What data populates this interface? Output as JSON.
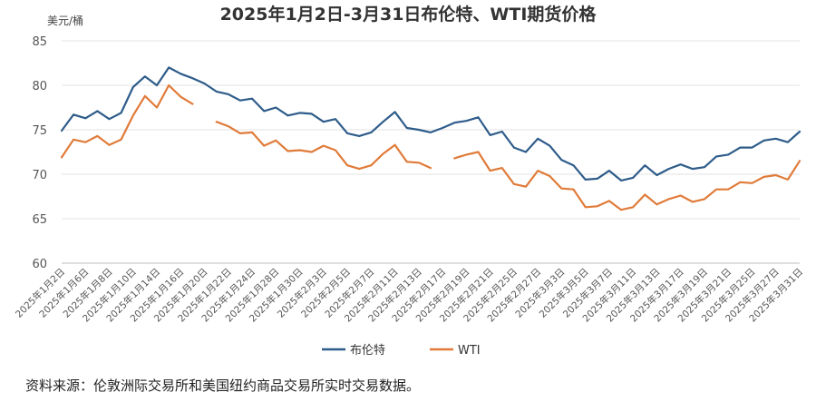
{
  "chart_data": {
    "type": "line",
    "title": "2025年1月2日-3月31日布伦特、WTI期货价格",
    "ylabel": "美元/桶",
    "ylim": [
      60,
      85
    ],
    "yticks": [
      "60",
      "65",
      "70",
      "75",
      "80",
      "85"
    ],
    "grid": "horizontal",
    "legend_position": "bottom-center",
    "x": [
      "1/2",
      "1/3",
      "1/6",
      "1/7",
      "1/8",
      "1/9",
      "1/10",
      "1/13",
      "1/14",
      "1/15",
      "1/16",
      "1/17",
      "1/20",
      "1/21",
      "1/22",
      "1/23",
      "1/24",
      "1/27",
      "1/28",
      "1/29",
      "1/30",
      "1/31",
      "2/3",
      "2/4",
      "2/5",
      "2/6",
      "2/7",
      "2/10",
      "2/11",
      "2/12",
      "2/13",
      "2/14",
      "2/17",
      "2/18",
      "2/19",
      "2/20",
      "2/21",
      "2/24",
      "2/25",
      "2/26",
      "2/27",
      "2/28",
      "3/3",
      "3/4",
      "3/5",
      "3/6",
      "3/7",
      "3/10",
      "3/11",
      "3/12",
      "3/13",
      "3/14",
      "3/17",
      "3/18",
      "3/19",
      "3/20",
      "3/21",
      "3/24",
      "3/25",
      "3/26",
      "3/27",
      "3/28",
      "3/31"
    ],
    "xticklabels": [
      "2025年1月2日",
      "2025年1月6日",
      "2025年1月8日",
      "2025年1月10日",
      "2025年1月14日",
      "2025年1月16日",
      "2025年1月20日",
      "2025年1月22日",
      "2025年1月24日",
      "2025年1月28日",
      "2025年1月30日",
      "2025年2月3日",
      "2025年2月5日",
      "2025年2月7日",
      "2025年2月11日",
      "2025年2月13日",
      "2025年2月17日",
      "2025年2月19日",
      "2025年2月21日",
      "2025年2月25日",
      "2025年2月27日",
      "2025年3月3日",
      "2025年3月5日",
      "2025年3月7日",
      "2025年3月11日",
      "2025年3月13日",
      "2025年3月17日",
      "2025年3月19日",
      "2025年3月21日",
      "2025年3月25日",
      "2025年3月27日",
      "2025年3月31日"
    ],
    "series": [
      {
        "name": "布伦特",
        "color": "#2e5c8a",
        "values": [
          74.9,
          76.7,
          76.3,
          77.1,
          76.2,
          76.9,
          79.8,
          81.0,
          80.0,
          82.0,
          81.3,
          80.8,
          80.2,
          79.3,
          79.0,
          78.3,
          78.5,
          77.1,
          77.5,
          76.6,
          76.9,
          76.8,
          75.9,
          76.2,
          74.6,
          74.3,
          74.7,
          75.9,
          77.0,
          75.2,
          75.0,
          74.7,
          75.2,
          75.8,
          76.0,
          76.4,
          74.4,
          74.8,
          73.0,
          72.5,
          74.0,
          73.2,
          71.6,
          71.0,
          69.4,
          69.5,
          70.4,
          69.3,
          69.6,
          71.0,
          69.9,
          70.6,
          71.1,
          70.6,
          70.8,
          72.0,
          72.2,
          73.0,
          73.0,
          73.8,
          74.0,
          73.6,
          74.8
        ]
      },
      {
        "name": "WTI",
        "color": "#e07b39",
        "values": [
          71.9,
          73.9,
          73.6,
          74.3,
          73.3,
          73.9,
          76.6,
          78.8,
          77.5,
          80.0,
          78.7,
          77.9,
          null,
          75.9,
          75.4,
          74.6,
          74.7,
          73.2,
          73.8,
          72.6,
          72.7,
          72.5,
          73.2,
          72.7,
          71.0,
          70.6,
          71.0,
          72.3,
          73.3,
          71.4,
          71.3,
          70.7,
          null,
          71.8,
          72.2,
          72.5,
          70.4,
          70.7,
          68.9,
          68.6,
          70.4,
          69.8,
          68.4,
          68.3,
          66.3,
          66.4,
          67.0,
          66.0,
          66.3,
          67.7,
          66.6,
          67.2,
          67.6,
          66.9,
          67.2,
          68.3,
          68.3,
          69.1,
          69.0,
          69.7,
          69.9,
          69.4,
          71.5
        ]
      }
    ]
  },
  "footer": {
    "source": "资料来源：伦敦洲际交易所和美国纽约商品交易所实时交易数据。"
  }
}
